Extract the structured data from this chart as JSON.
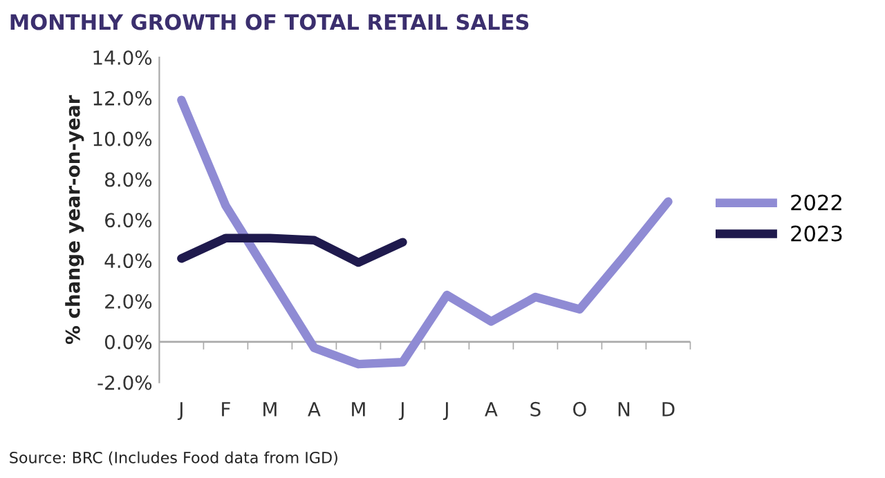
{
  "chart_data": {
    "type": "line",
    "title": "MONTHLY GROWTH OF TOTAL RETAIL SALES",
    "ylabel": "% change year-on-year",
    "categories": [
      "J",
      "F",
      "M",
      "A",
      "M",
      "J",
      "J",
      "A",
      "S",
      "O",
      "N",
      "D"
    ],
    "series": [
      {
        "name": "2022",
        "color": "#8f8bd4",
        "values": [
          11.9,
          6.7,
          3.2,
          -0.3,
          -1.1,
          -1.0,
          2.3,
          1.0,
          2.2,
          1.6,
          4.2,
          6.9
        ]
      },
      {
        "name": "2023",
        "color": "#1f1a4d",
        "values": [
          4.1,
          5.1,
          5.1,
          5.0,
          3.9,
          4.9,
          null,
          null,
          null,
          null,
          null,
          null
        ]
      }
    ],
    "ylim": [
      -2,
      14
    ],
    "yticks": [
      {
        "value": -2,
        "label": "-2.0%"
      },
      {
        "value": 0,
        "label": "0.0%"
      },
      {
        "value": 2,
        "label": "2.0%"
      },
      {
        "value": 4,
        "label": "4.0%"
      },
      {
        "value": 6,
        "label": "6.0%"
      },
      {
        "value": 8,
        "label": "8.0%"
      },
      {
        "value": 10,
        "label": "10.0%"
      },
      {
        "value": 12,
        "label": "12.0%"
      },
      {
        "value": 14,
        "label": "14.0%"
      }
    ],
    "ref_lines": [
      {
        "axis": "y",
        "value": 0,
        "color": "#aaaaaa",
        "line_style": "solid"
      }
    ],
    "legend": "right",
    "marker": "none",
    "line_style": "solid",
    "annotations": [
      "Source: BRC (Includes Food data from IGD)"
    ]
  }
}
